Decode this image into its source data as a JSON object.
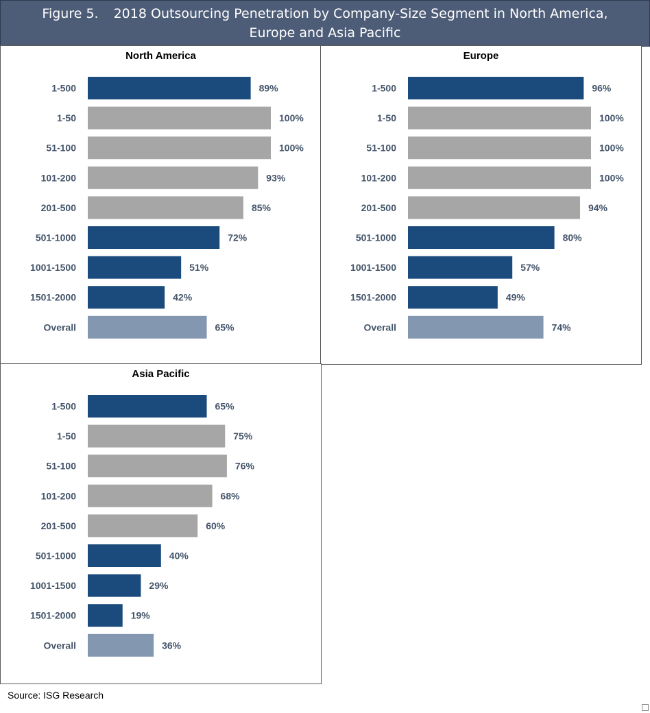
{
  "header": {
    "figure_label": "Figure 5.",
    "title": "2018 Outsourcing Penetration by Company-Size Segment in North America, Europe and Asia Pacific"
  },
  "source": "Source: ISG Research",
  "colors": {
    "dark_blue": "#1b4a7d",
    "gray": "#a6a6a6",
    "light_blue": "#8497b0",
    "label_text": "#44546a",
    "header_bg": "#4d5c77"
  },
  "chart_data": [
    {
      "type": "bar",
      "orientation": "horizontal",
      "title": "North America",
      "categories": [
        "1-500",
        "1-50",
        "51-100",
        "101-200",
        "201-500",
        "501-1000",
        "1001-1500",
        "1501-2000",
        "Overall"
      ],
      "values": [
        89,
        100,
        100,
        93,
        85,
        72,
        51,
        42,
        65
      ],
      "labels": [
        "89%",
        "100%",
        "100%",
        "93%",
        "85%",
        "72%",
        "51%",
        "42%",
        "65%"
      ],
      "bar_colors": [
        "dark_blue",
        "gray",
        "gray",
        "gray",
        "gray",
        "dark_blue",
        "dark_blue",
        "dark_blue",
        "light_blue"
      ],
      "xlim": [
        0,
        100
      ],
      "grid": false
    },
    {
      "type": "bar",
      "orientation": "horizontal",
      "title": "Europe",
      "categories": [
        "1-500",
        "1-50",
        "51-100",
        "101-200",
        "201-500",
        "501-1000",
        "1001-1500",
        "1501-2000",
        "Overall"
      ],
      "values": [
        96,
        100,
        100,
        100,
        94,
        80,
        57,
        49,
        74
      ],
      "labels": [
        "96%",
        "100%",
        "100%",
        "100%",
        "94%",
        "80%",
        "57%",
        "49%",
        "74%"
      ],
      "bar_colors": [
        "dark_blue",
        "gray",
        "gray",
        "gray",
        "gray",
        "dark_blue",
        "dark_blue",
        "dark_blue",
        "light_blue"
      ],
      "xlim": [
        0,
        100
      ],
      "grid": false
    },
    {
      "type": "bar",
      "orientation": "horizontal",
      "title": "Asia Pacific",
      "categories": [
        "1-500",
        "1-50",
        "51-100",
        "101-200",
        "201-500",
        "501-1000",
        "1001-1500",
        "1501-2000",
        "Overall"
      ],
      "values": [
        65,
        75,
        76,
        68,
        60,
        40,
        29,
        19,
        36
      ],
      "labels": [
        "65%",
        "75%",
        "76%",
        "68%",
        "60%",
        "40%",
        "29%",
        "19%",
        "36%"
      ],
      "bar_colors": [
        "dark_blue",
        "gray",
        "gray",
        "gray",
        "gray",
        "dark_blue",
        "dark_blue",
        "dark_blue",
        "light_blue"
      ],
      "xlim": [
        0,
        100
      ],
      "grid": false
    }
  ]
}
